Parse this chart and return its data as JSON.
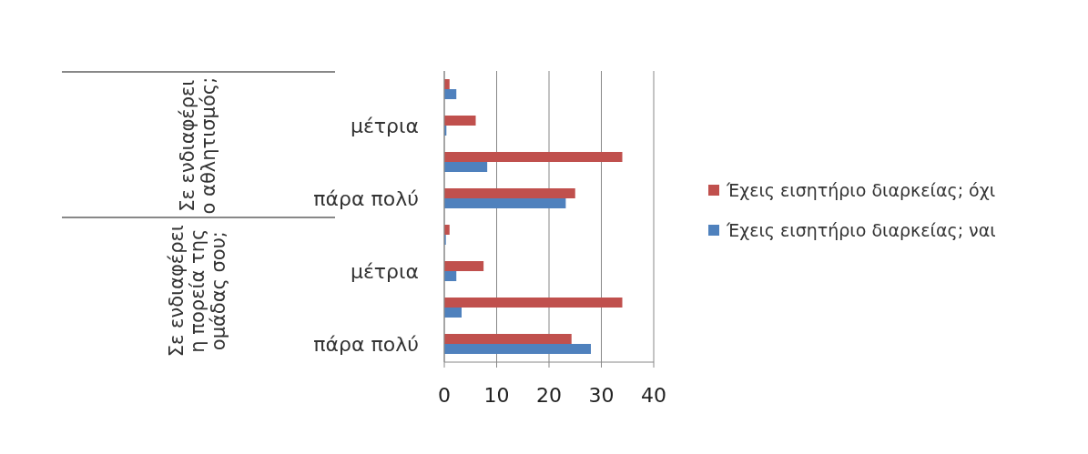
{
  "chart_data": {
    "type": "bar",
    "orientation": "horizontal",
    "categories": [
      null,
      "μέτρια",
      null,
      "πάρα πολύ",
      null,
      "μέτρια",
      null,
      "πάρα πολύ"
    ],
    "series": [
      {
        "name": "Έχεις εισητήριο διαρκείας; όχι",
        "color": "#c0504d",
        "values": [
          1,
          6,
          34,
          25,
          1,
          7.5,
          34,
          24.3
        ]
      },
      {
        "name": "Έχεις εισητήριο διαρκείας; ναι",
        "color": "#4f81bd",
        "values": [
          2.3,
          0.4,
          8.2,
          23.2,
          0.3,
          2.3,
          3.3,
          28
        ]
      }
    ],
    "xlim": [
      0,
      40
    ],
    "xticks": [
      0,
      10,
      20,
      30,
      40
    ],
    "grid": "x",
    "legend": "right",
    "annotations": [
      "Σε ενδιαφέρει ο αθλητισμός;",
      "Σε ενδιαφέρει η πορεία της ομάδας σου;"
    ]
  }
}
